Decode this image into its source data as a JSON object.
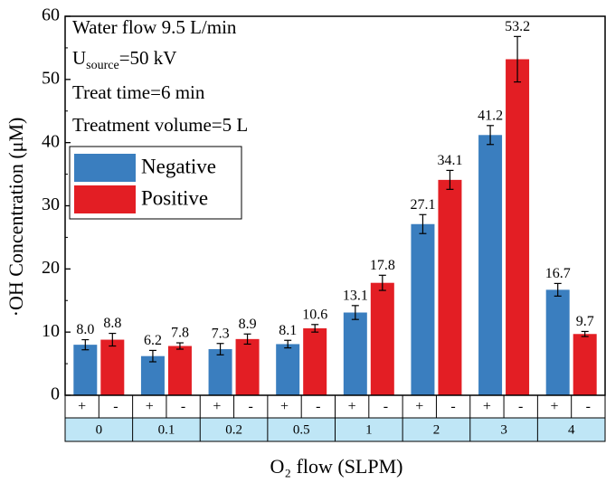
{
  "chart_data": {
    "type": "bar",
    "ylabel": "·OH Concentration (μM)",
    "xlabel": "O₂ flow (SLPM)",
    "ylim": [
      0,
      60
    ],
    "yticks": [
      0,
      10,
      20,
      30,
      40,
      50,
      60
    ],
    "categories": [
      "0",
      "0.1",
      "0.2",
      "0.5",
      "1",
      "2",
      "3",
      "4"
    ],
    "sign_labels": [
      "+",
      "-"
    ],
    "series": [
      {
        "name": "Negative",
        "color": "#3a7ebf",
        "values": [
          8.0,
          6.2,
          7.3,
          8.1,
          13.1,
          27.1,
          41.2,
          16.7
        ],
        "labels": [
          "8.0",
          "6.2",
          "7.3",
          "8.1",
          "13.1",
          "27.1",
          "41.2",
          "16.7"
        ],
        "errors": [
          0.8,
          0.9,
          0.9,
          0.6,
          1.1,
          1.5,
          1.5,
          1.0
        ]
      },
      {
        "name": "Positive",
        "color": "#e31e24",
        "values": [
          8.8,
          7.8,
          8.9,
          10.6,
          17.8,
          34.1,
          53.2,
          9.7
        ],
        "labels": [
          "8.8",
          "7.8",
          "8.9",
          "10.6",
          "17.8",
          "34.1",
          "53.2",
          "9.7"
        ],
        "errors": [
          1.0,
          0.5,
          0.8,
          0.6,
          1.2,
          1.5,
          3.6,
          0.4
        ]
      }
    ],
    "annotations": {
      "water_flow": "Water flow 9.5 L/min",
      "u_main": "U",
      "u_sub": "source",
      "u_rest": "=50 kV",
      "treat_time": "Treat time=6 min",
      "volume": "Treatment volume=5 L"
    },
    "legend": [
      "Negative",
      "Positive"
    ],
    "legend_position": "top-left"
  }
}
